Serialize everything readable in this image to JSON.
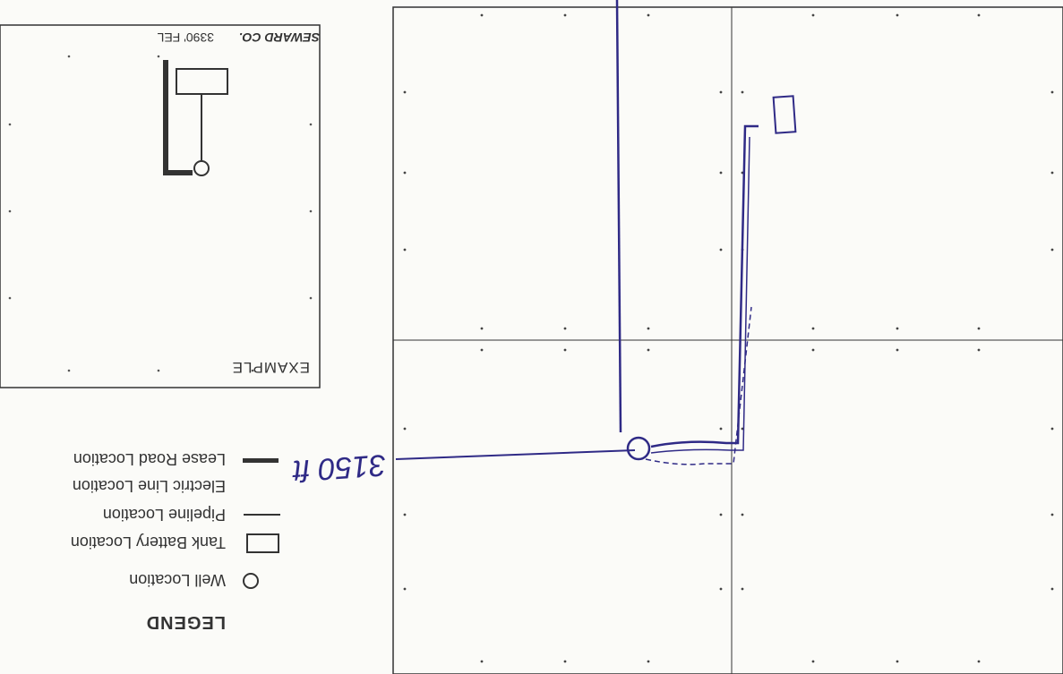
{
  "legend": {
    "title": "LEGEND",
    "items": [
      {
        "label": "Well Location",
        "symbol": "circle-icon"
      },
      {
        "label": "Tank Battery Location",
        "symbol": "rectangle-icon"
      },
      {
        "label": "Pipeline Location",
        "symbol": "thin-line-icon"
      },
      {
        "label": "Electric Line Location",
        "symbol": "dashed-line-icon"
      },
      {
        "label": "Lease Road Location",
        "symbol": "thick-line-icon"
      }
    ]
  },
  "example_box": {
    "title": "EXAMPLE",
    "county_label": "SEWARD CO.",
    "footage_label": "3390' FEL"
  },
  "annotation": {
    "handwritten": "3150 ft"
  },
  "colors": {
    "ink": "#2f2a86",
    "paper": "#fbfbf8",
    "print": "#333333"
  }
}
